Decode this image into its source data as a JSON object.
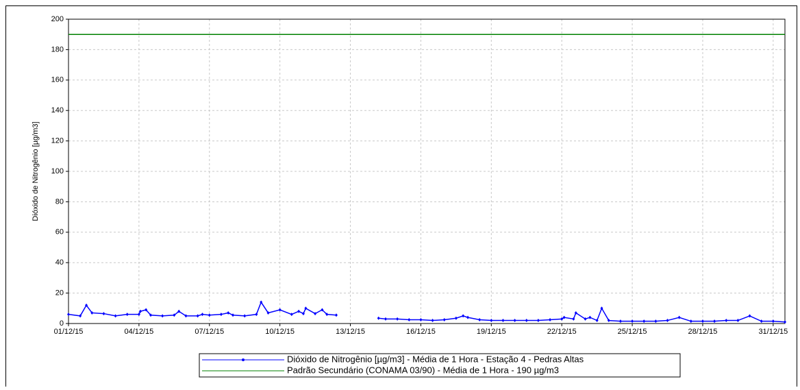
{
  "chart_data": {
    "type": "line",
    "y_label": "Dióxido de Nitrogênio [µg/m3]",
    "xlim": [
      0,
      30.5
    ],
    "xticks": [
      {
        "value": 0,
        "label": "01/12/15"
      },
      {
        "value": 3,
        "label": "04/12/15"
      },
      {
        "value": 6,
        "label": "07/12/15"
      },
      {
        "value": 9,
        "label": "10/12/15"
      },
      {
        "value": 12,
        "label": "13/12/15"
      },
      {
        "value": 15,
        "label": "16/12/15"
      },
      {
        "value": 18,
        "label": "19/12/15"
      },
      {
        "value": 21,
        "label": "22/12/15"
      },
      {
        "value": 24,
        "label": "25/12/15"
      },
      {
        "value": 27,
        "label": "28/12/15"
      },
      {
        "value": 30,
        "label": "31/12/15"
      }
    ],
    "ylim": [
      0,
      200
    ],
    "yticks": [
      0,
      20,
      40,
      60,
      80,
      100,
      120,
      140,
      160,
      180,
      200
    ],
    "grid": true,
    "legend": "bottom",
    "series": [
      {
        "name": "Dióxido de Nitrogênio [µg/m3] - Média de 1 Hora - Estação 4 - Pedras Altas",
        "color": "#0000ff",
        "markers": true,
        "x": [
          0,
          0.5,
          0.76,
          1,
          1.5,
          2,
          2.5,
          3,
          3.06,
          3.3,
          3.5,
          4,
          4.5,
          4.7,
          5,
          5.5,
          5.7,
          6,
          6.5,
          6.8,
          7,
          7.5,
          8,
          8.2,
          8.5,
          9,
          9.5,
          9.8,
          10,
          10.1,
          10.5,
          10.8,
          11,
          11.4,
          12.3,
          13.2,
          13.5,
          14,
          14.5,
          15,
          15.5,
          16,
          16.5,
          16.8,
          17,
          17.5,
          18,
          18.5,
          19,
          19.5,
          20,
          20.5,
          21,
          21.1,
          21.5,
          21.6,
          22,
          22.2,
          22.5,
          22.7,
          23,
          23.5,
          24,
          24.5,
          25,
          25.5,
          26,
          26.5,
          27,
          27.5,
          28,
          28.5,
          29,
          29.5,
          30,
          30.5
        ],
        "values": [
          6,
          5,
          12,
          7,
          6.5,
          5,
          6,
          6,
          8,
          9,
          5.5,
          5,
          5.5,
          8,
          5,
          5,
          6,
          5.5,
          6,
          7,
          5.5,
          5,
          6,
          14,
          7,
          9,
          6,
          8,
          6.5,
          10,
          6.5,
          9,
          6,
          5.5,
          null,
          3.5,
          3,
          3,
          2.5,
          2.5,
          2,
          2.5,
          3.5,
          5,
          4,
          2.5,
          2,
          2,
          2,
          2,
          2,
          2.5,
          3,
          4,
          3,
          7,
          3,
          4,
          2,
          10,
          2,
          1.5,
          1.5,
          1.5,
          1.5,
          2,
          4,
          1.5,
          1.5,
          1.5,
          2,
          2,
          5,
          1.5,
          1.5,
          1
        ]
      },
      {
        "name": "Padrão Secundário (CONAMA 03/90) - Média de 1 Hora - 190 µg/m3",
        "color": "#008000",
        "markers": false,
        "x": [
          0,
          30.5
        ],
        "values": [
          190,
          190
        ]
      }
    ]
  }
}
